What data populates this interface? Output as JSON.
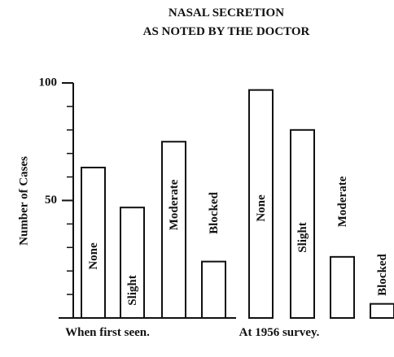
{
  "chart_data": {
    "type": "bar",
    "title_lines": [
      "NASAL SECRETION",
      "AS NOTED BY THE DOCTOR"
    ],
    "y_label": "Number of Cases",
    "categories": [
      "When first seen.",
      "At 1956 survey."
    ],
    "series": [
      {
        "name": "None",
        "color": "#ffffff",
        "values": [
          64,
          97
        ]
      },
      {
        "name": "Slight",
        "color": "#ffffff",
        "values": [
          47,
          80
        ]
      },
      {
        "name": "Moderate",
        "color": "#ffffff",
        "values": [
          75,
          26
        ]
      },
      {
        "name": "Blocked",
        "color": "#ffffff",
        "values": [
          24,
          6
        ]
      }
    ],
    "ylim": [
      0,
      100
    ],
    "yticks": [
      50,
      100
    ],
    "yticks_minor": [
      10,
      20,
      30,
      40,
      60,
      70,
      80,
      90
    ]
  }
}
